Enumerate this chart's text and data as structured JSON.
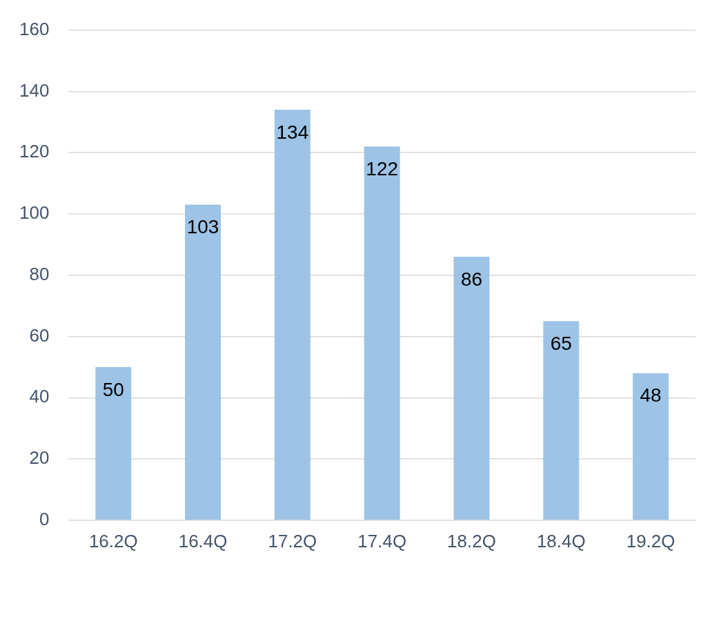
{
  "chart_data": {
    "type": "bar",
    "categories": [
      "16.2Q",
      "16.4Q",
      "17.2Q",
      "17.4Q",
      "18.2Q",
      "18.4Q",
      "19.2Q"
    ],
    "series": [
      {
        "color": "#9dc3e6",
        "values": [
          50,
          103,
          134,
          122,
          86,
          65,
          48
        ]
      }
    ],
    "ylim": [
      0,
      160
    ],
    "yticks": [
      0,
      20,
      40,
      60,
      80,
      100,
      120,
      140,
      160
    ],
    "grid": "y",
    "data_labels": true,
    "legend": false
  }
}
